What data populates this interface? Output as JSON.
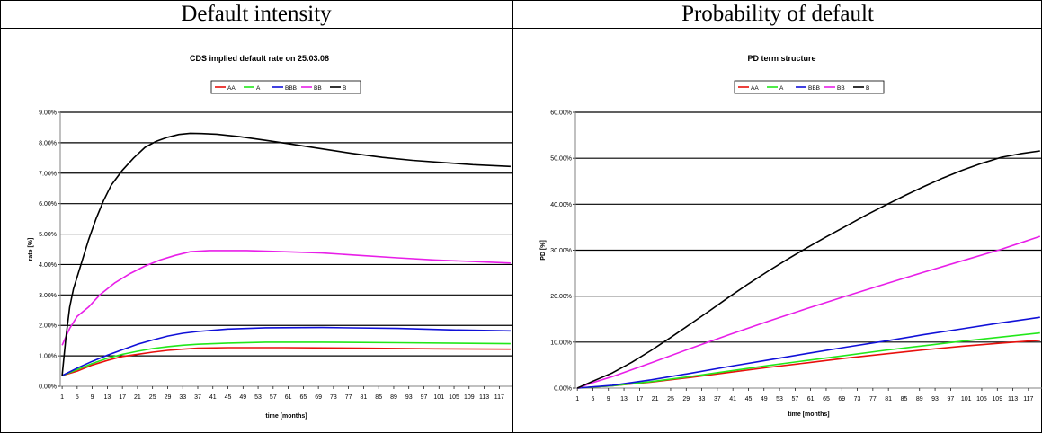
{
  "headers": [
    "Default intensity",
    "Probability of default"
  ],
  "chart_data": [
    {
      "type": "line",
      "title": "CDS implied default rate on 25.03.08",
      "xlabel": "time [months]",
      "ylabel": "rate [%]",
      "ylim": [
        0,
        9
      ],
      "y_ticks": [
        "0.00%",
        "1.00%",
        "2.00%",
        "3.00%",
        "4.00%",
        "5.00%",
        "6.00%",
        "7.00%",
        "8.00%",
        "9.00%"
      ],
      "x_ticks": [
        "1",
        "5",
        "9",
        "13",
        "17",
        "21",
        "25",
        "29",
        "33",
        "37",
        "41",
        "45",
        "49",
        "53",
        "57",
        "61",
        "65",
        "69",
        "73",
        "77",
        "81",
        "85",
        "89",
        "93",
        "97",
        "101",
        "105",
        "109",
        "113",
        "117"
      ],
      "x_range": [
        1,
        120
      ],
      "grid": "horizontal",
      "legend_position": "top-center",
      "series": [
        {
          "name": "AA",
          "color": "#e8100c",
          "points": [
            [
              1,
              0.35
            ],
            [
              5,
              0.5
            ],
            [
              9,
              0.7
            ],
            [
              13,
              0.85
            ],
            [
              17,
              0.98
            ],
            [
              21,
              1.05
            ],
            [
              25,
              1.12
            ],
            [
              29,
              1.18
            ],
            [
              33,
              1.22
            ],
            [
              37,
              1.25
            ],
            [
              45,
              1.27
            ],
            [
              60,
              1.27
            ],
            [
              80,
              1.25
            ],
            [
              100,
              1.23
            ],
            [
              120,
              1.22
            ]
          ]
        },
        {
          "name": "A",
          "color": "#22e81a",
          "points": [
            [
              1,
              0.35
            ],
            [
              5,
              0.55
            ],
            [
              9,
              0.75
            ],
            [
              13,
              0.92
            ],
            [
              17,
              1.05
            ],
            [
              21,
              1.15
            ],
            [
              25,
              1.24
            ],
            [
              29,
              1.3
            ],
            [
              33,
              1.35
            ],
            [
              37,
              1.38
            ],
            [
              45,
              1.42
            ],
            [
              55,
              1.45
            ],
            [
              70,
              1.45
            ],
            [
              90,
              1.43
            ],
            [
              120,
              1.4
            ]
          ]
        },
        {
          "name": "BBB",
          "color": "#1010d8",
          "points": [
            [
              1,
              0.35
            ],
            [
              5,
              0.6
            ],
            [
              9,
              0.82
            ],
            [
              13,
              1.02
            ],
            [
              17,
              1.2
            ],
            [
              21,
              1.38
            ],
            [
              25,
              1.52
            ],
            [
              29,
              1.65
            ],
            [
              33,
              1.74
            ],
            [
              37,
              1.8
            ],
            [
              45,
              1.88
            ],
            [
              55,
              1.92
            ],
            [
              70,
              1.93
            ],
            [
              90,
              1.9
            ],
            [
              105,
              1.85
            ],
            [
              120,
              1.82
            ]
          ]
        },
        {
          "name": "BB",
          "color": "#e81ee8",
          "points": [
            [
              1,
              1.35
            ],
            [
              3,
              1.9
            ],
            [
              5,
              2.3
            ],
            [
              8,
              2.6
            ],
            [
              11,
              3.0
            ],
            [
              15,
              3.4
            ],
            [
              19,
              3.7
            ],
            [
              23,
              3.95
            ],
            [
              27,
              4.15
            ],
            [
              31,
              4.3
            ],
            [
              35,
              4.42
            ],
            [
              40,
              4.46
            ],
            [
              50,
              4.46
            ],
            [
              60,
              4.42
            ],
            [
              70,
              4.38
            ],
            [
              80,
              4.3
            ],
            [
              90,
              4.22
            ],
            [
              100,
              4.15
            ],
            [
              110,
              4.1
            ],
            [
              120,
              4.05
            ]
          ]
        },
        {
          "name": "B",
          "color": "#000000",
          "points": [
            [
              1,
              0.35
            ],
            [
              2,
              1.6
            ],
            [
              3,
              2.6
            ],
            [
              4,
              3.2
            ],
            [
              6,
              4.0
            ],
            [
              8,
              4.8
            ],
            [
              10,
              5.5
            ],
            [
              12,
              6.1
            ],
            [
              14,
              6.6
            ],
            [
              17,
              7.1
            ],
            [
              20,
              7.5
            ],
            [
              23,
              7.85
            ],
            [
              26,
              8.05
            ],
            [
              29,
              8.18
            ],
            [
              32,
              8.27
            ],
            [
              35,
              8.31
            ],
            [
              38,
              8.3
            ],
            [
              42,
              8.28
            ],
            [
              48,
              8.2
            ],
            [
              55,
              8.08
            ],
            [
              62,
              7.95
            ],
            [
              70,
              7.8
            ],
            [
              78,
              7.65
            ],
            [
              86,
              7.52
            ],
            [
              94,
              7.42
            ],
            [
              102,
              7.35
            ],
            [
              110,
              7.28
            ],
            [
              120,
              7.22
            ]
          ]
        }
      ]
    },
    {
      "type": "line",
      "title": "PD term structure",
      "xlabel": "time [months]",
      "ylabel": "PD [%]",
      "ylim": [
        0,
        60
      ],
      "y_ticks": [
        "0.00%",
        "10.00%",
        "20.00%",
        "30.00%",
        "40.00%",
        "50.00%",
        "60.00%"
      ],
      "x_ticks": [
        "1",
        "5",
        "9",
        "13",
        "17",
        "21",
        "25",
        "29",
        "33",
        "37",
        "41",
        "45",
        "49",
        "53",
        "57",
        "61",
        "65",
        "69",
        "73",
        "77",
        "81",
        "85",
        "89",
        "93",
        "97",
        "101",
        "105",
        "109",
        "113",
        "117"
      ],
      "x_range": [
        1,
        120
      ],
      "grid": "horizontal",
      "legend_position": "top-center",
      "series": [
        {
          "name": "AA",
          "color": "#e8100c",
          "points": [
            [
              1,
              0
            ],
            [
              10,
              0.5
            ],
            [
              20,
              1.3
            ],
            [
              30,
              2.3
            ],
            [
              40,
              3.4
            ],
            [
              50,
              4.5
            ],
            [
              60,
              5.5
            ],
            [
              70,
              6.5
            ],
            [
              80,
              7.4
            ],
            [
              90,
              8.3
            ],
            [
              100,
              9.1
            ],
            [
              110,
              9.8
            ],
            [
              120,
              10.4
            ]
          ]
        },
        {
          "name": "A",
          "color": "#22e81a",
          "points": [
            [
              1,
              0
            ],
            [
              10,
              0.5
            ],
            [
              20,
              1.4
            ],
            [
              30,
              2.5
            ],
            [
              40,
              3.7
            ],
            [
              50,
              4.9
            ],
            [
              60,
              6.0
            ],
            [
              70,
              7.1
            ],
            [
              80,
              8.2
            ],
            [
              90,
              9.2
            ],
            [
              100,
              10.2
            ],
            [
              110,
              11.1
            ],
            [
              120,
              12.0
            ]
          ]
        },
        {
          "name": "BBB",
          "color": "#1010d8",
          "points": [
            [
              1,
              0
            ],
            [
              10,
              0.6
            ],
            [
              20,
              1.8
            ],
            [
              30,
              3.2
            ],
            [
              40,
              4.7
            ],
            [
              50,
              6.1
            ],
            [
              60,
              7.5
            ],
            [
              70,
              8.9
            ],
            [
              80,
              10.2
            ],
            [
              90,
              11.6
            ],
            [
              100,
              12.9
            ],
            [
              110,
              14.2
            ],
            [
              120,
              15.4
            ]
          ]
        },
        {
          "name": "BB",
          "color": "#e81ee8",
          "points": [
            [
              1,
              0
            ],
            [
              5,
              1.2
            ],
            [
              10,
              2.5
            ],
            [
              20,
              5.5
            ],
            [
              30,
              8.6
            ],
            [
              40,
              11.6
            ],
            [
              50,
              14.5
            ],
            [
              60,
              17.3
            ],
            [
              70,
              20.0
            ],
            [
              80,
              22.6
            ],
            [
              90,
              25.2
            ],
            [
              100,
              27.7
            ],
            [
              110,
              30.2
            ],
            [
              120,
              33.0
            ]
          ]
        },
        {
          "name": "B",
          "color": "#000000",
          "points": [
            [
              1,
              0
            ],
            [
              5,
              1.5
            ],
            [
              10,
              3.3
            ],
            [
              15,
              5.6
            ],
            [
              20,
              8.2
            ],
            [
              25,
              11.0
            ],
            [
              30,
              13.9
            ],
            [
              35,
              16.8
            ],
            [
              40,
              19.8
            ],
            [
              45,
              22.7
            ],
            [
              50,
              25.4
            ],
            [
              55,
              28.0
            ],
            [
              60,
              30.5
            ],
            [
              65,
              32.9
            ],
            [
              70,
              35.2
            ],
            [
              75,
              37.5
            ],
            [
              80,
              39.7
            ],
            [
              85,
              41.8
            ],
            [
              90,
              43.8
            ],
            [
              95,
              45.7
            ],
            [
              100,
              47.4
            ],
            [
              105,
              48.9
            ],
            [
              110,
              50.2
            ],
            [
              115,
              51.0
            ],
            [
              120,
              51.6
            ]
          ]
        }
      ]
    }
  ]
}
